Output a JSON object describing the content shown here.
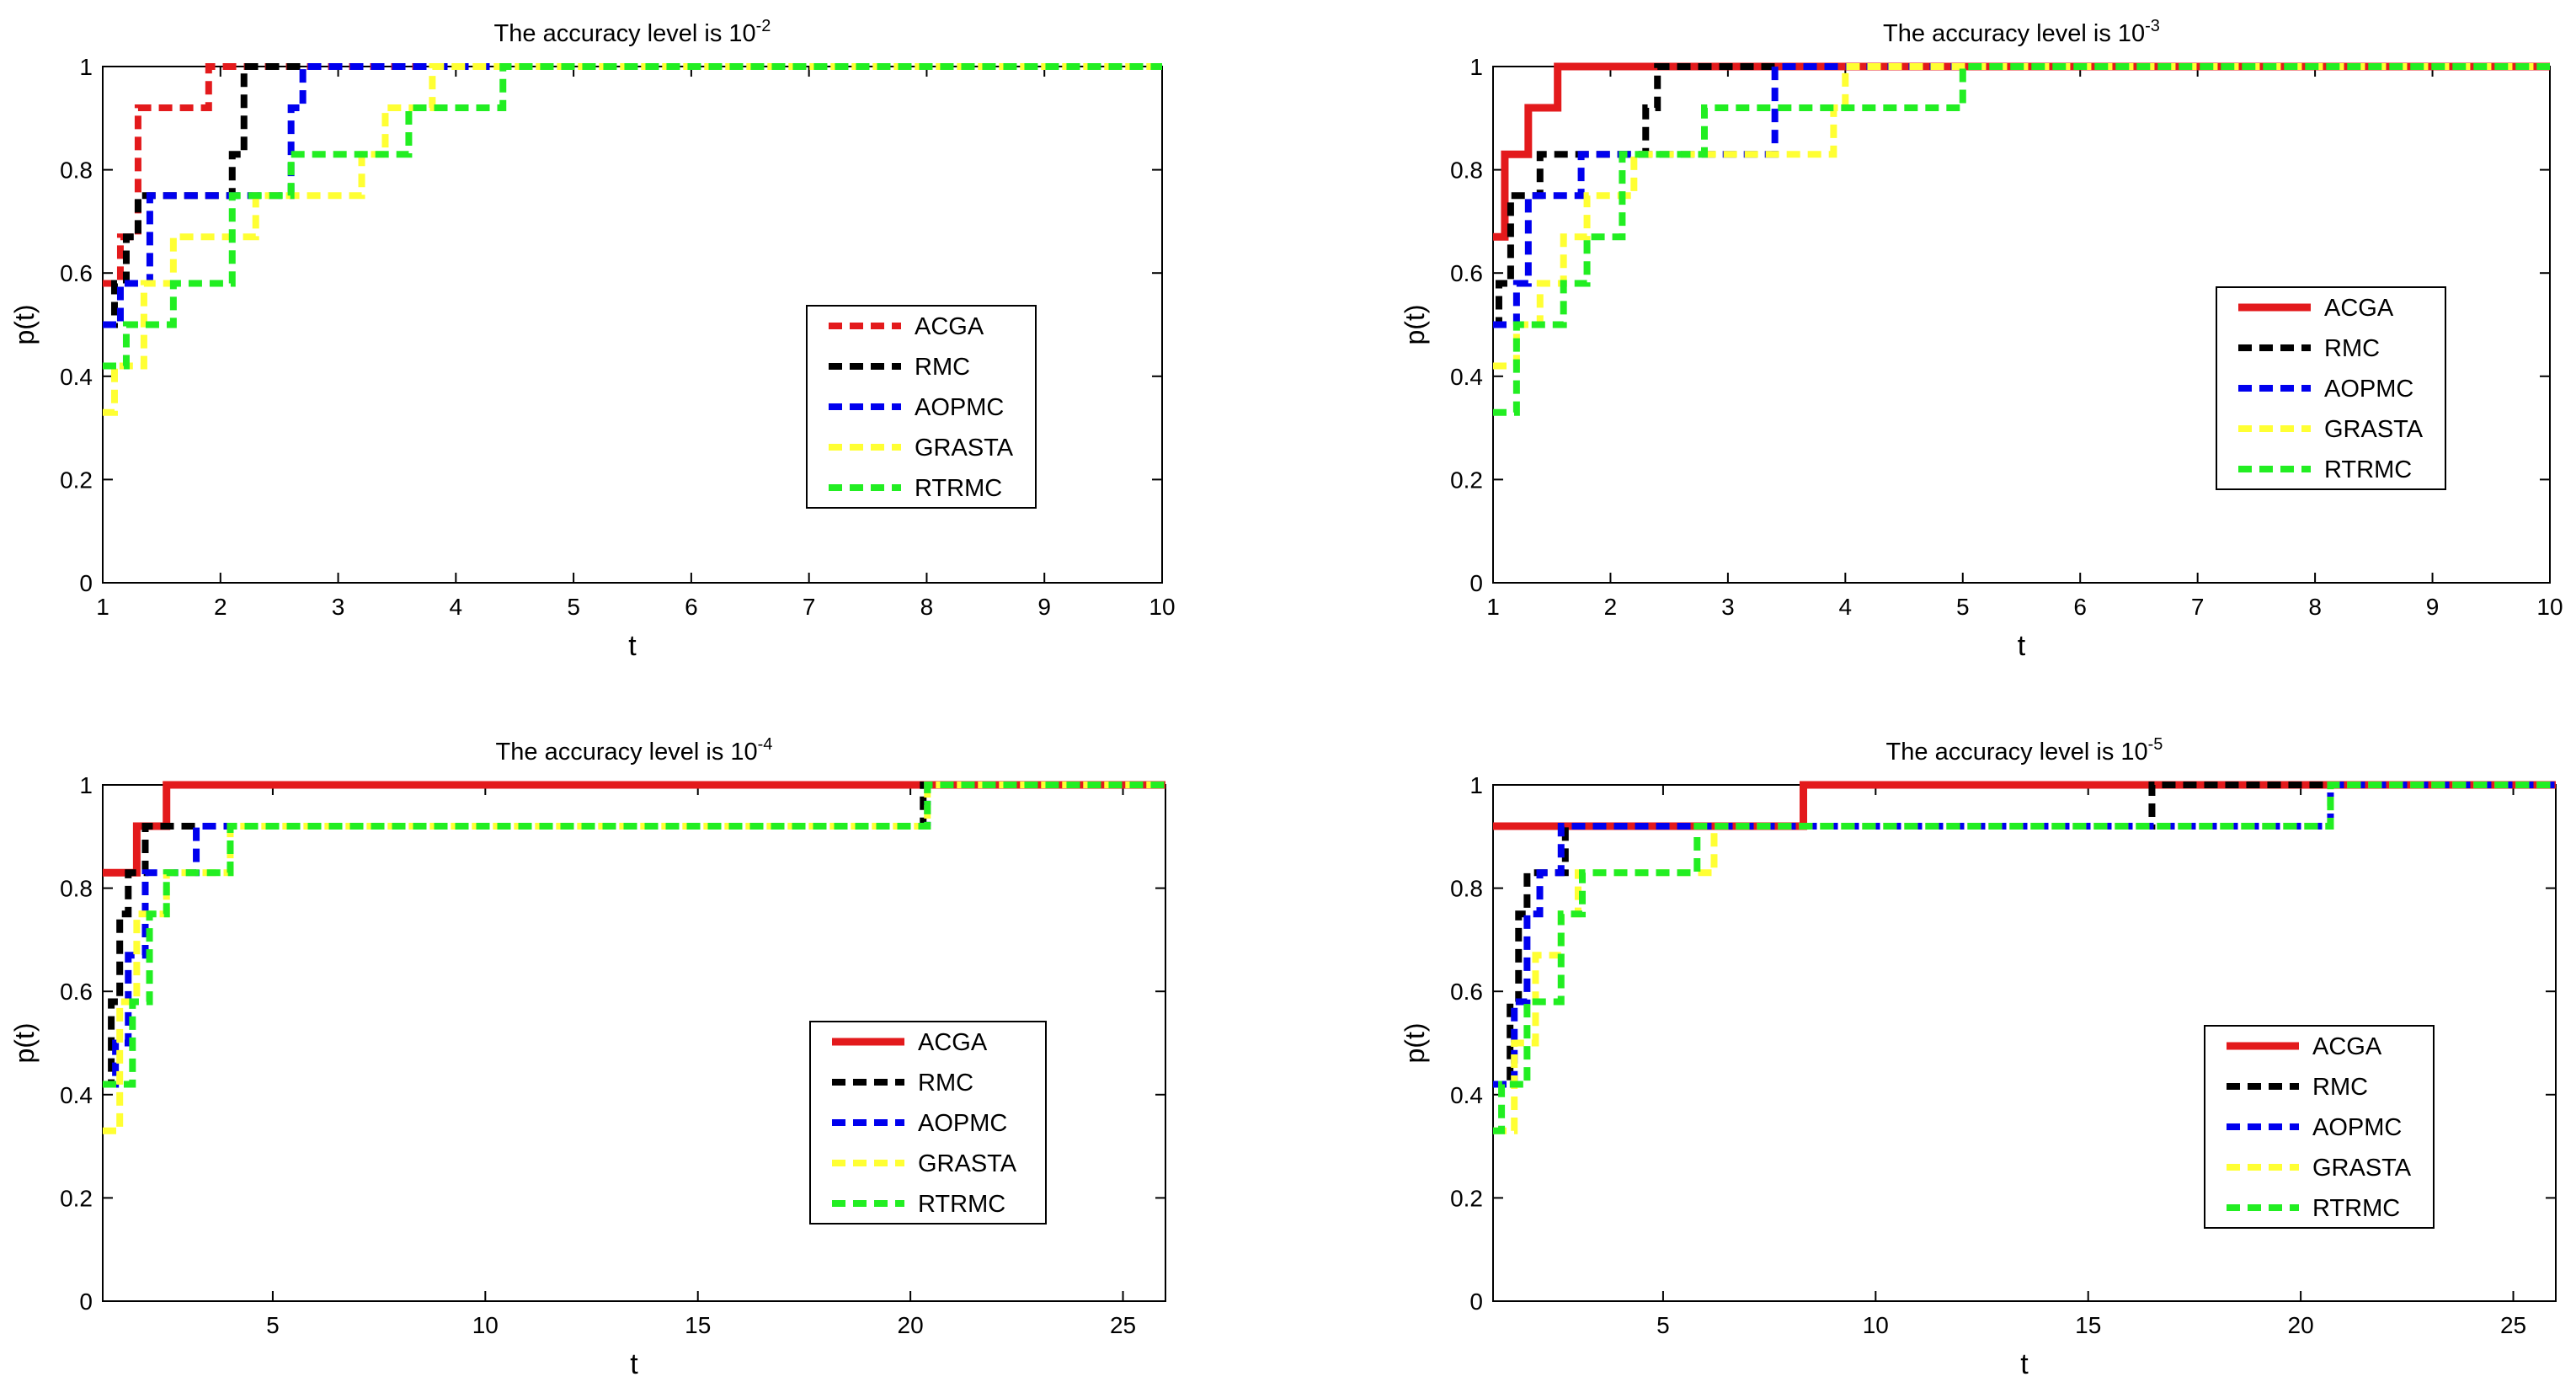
{
  "chart_data": [
    {
      "type": "line",
      "title_prefix": "The accuracy level is 10",
      "title_exp": "-2",
      "xlabel": "t",
      "ylabel": "p(t)",
      "xlim": [
        1,
        10
      ],
      "ylim": [
        0,
        1
      ],
      "xticks": [
        1,
        2,
        3,
        4,
        5,
        6,
        7,
        8,
        9,
        10
      ],
      "yticks": [
        0,
        0.2,
        0.4,
        0.6,
        0.8,
        1
      ],
      "legend_position": "right-center",
      "series": [
        {
          "name": "ACGA",
          "color": "#e31a1c",
          "style": "dashed",
          "x": [
            1,
            1.15,
            1.3,
            1.85,
            1.9,
            10
          ],
          "y": [
            0.58,
            0.67,
            0.92,
            0.92,
            1.0,
            1.0
          ]
        },
        {
          "name": "RMC",
          "color": "#000000",
          "style": "dashed",
          "x": [
            1,
            1.1,
            1.2,
            1.3,
            2.0,
            2.1,
            2.2,
            10
          ],
          "y": [
            0.5,
            0.58,
            0.67,
            0.75,
            0.75,
            0.83,
            1.0,
            1.0
          ]
        },
        {
          "name": "AOPMC",
          "color": "#0000ee",
          "style": "dashed",
          "x": [
            1,
            1.15,
            1.3,
            1.4,
            2.5,
            2.6,
            2.7,
            3.8,
            10
          ],
          "y": [
            0.5,
            0.58,
            0.58,
            0.75,
            0.75,
            0.92,
            1.0,
            1.0,
            1.0
          ]
        },
        {
          "name": "GRASTA",
          "color": "#ffff33",
          "style": "dashed",
          "x": [
            1,
            1.1,
            1.35,
            1.6,
            2.1,
            2.3,
            3.2,
            3.4,
            3.8,
            4.4,
            10
          ],
          "y": [
            0.33,
            0.42,
            0.58,
            0.67,
            0.67,
            0.75,
            0.83,
            0.92,
            1.0,
            1.0,
            1.0
          ]
        },
        {
          "name": "RTRMC",
          "color": "#22ee22",
          "style": "dashed",
          "x": [
            1,
            1.2,
            1.6,
            2.1,
            2.6,
            3.6,
            4.4,
            10
          ],
          "y": [
            0.42,
            0.5,
            0.58,
            0.75,
            0.83,
            0.92,
            1.0,
            1.0
          ]
        }
      ]
    },
    {
      "type": "line",
      "title_prefix": "The accuracy level is 10",
      "title_exp": "-3",
      "xlabel": "t",
      "ylabel": "p(t)",
      "xlim": [
        1,
        10
      ],
      "ylim": [
        0,
        1
      ],
      "xticks": [
        1,
        2,
        3,
        4,
        5,
        6,
        7,
        8,
        9,
        10
      ],
      "yticks": [
        0,
        0.2,
        0.4,
        0.6,
        0.8,
        1
      ],
      "legend_position": "right-center",
      "series": [
        {
          "name": "ACGA",
          "color": "#e31a1c",
          "style": "solid",
          "x": [
            1,
            1.1,
            1.3,
            1.55,
            10
          ],
          "y": [
            0.67,
            0.83,
            0.92,
            1.0,
            1.0
          ]
        },
        {
          "name": "RMC",
          "color": "#000000",
          "style": "dashed",
          "x": [
            1,
            1.05,
            1.15,
            1.4,
            2.1,
            2.3,
            2.4,
            10
          ],
          "y": [
            0.5,
            0.58,
            0.75,
            0.83,
            0.83,
            0.92,
            1.0,
            1.0
          ]
        },
        {
          "name": "AOPMC",
          "color": "#0000ee",
          "style": "dashed",
          "x": [
            1,
            1.2,
            1.3,
            1.55,
            1.75,
            2.2,
            3.4,
            3.9,
            10
          ],
          "y": [
            0.5,
            0.58,
            0.75,
            0.75,
            0.83,
            0.83,
            1.0,
            1.0,
            1.0
          ]
        },
        {
          "name": "GRASTA",
          "color": "#ffff33",
          "style": "dashed",
          "x": [
            1,
            1.2,
            1.4,
            1.6,
            1.8,
            2.2,
            2.8,
            3.9,
            4.0,
            10
          ],
          "y": [
            0.42,
            0.5,
            0.58,
            0.67,
            0.75,
            0.83,
            0.83,
            0.92,
            1.0,
            1.0
          ]
        },
        {
          "name": "RTRMC",
          "color": "#22ee22",
          "style": "dashed",
          "x": [
            1,
            1.2,
            1.6,
            1.8,
            2.1,
            2.8,
            4.9,
            5.0,
            10
          ],
          "y": [
            0.33,
            0.5,
            0.58,
            0.67,
            0.83,
            0.92,
            0.92,
            1.0,
            1.0
          ]
        }
      ]
    },
    {
      "type": "line",
      "title_prefix": "The accuracy level is 10",
      "title_exp": "-4",
      "xlabel": "t",
      "ylabel": "p(t)",
      "xlim": [
        1,
        26
      ],
      "ylim": [
        0,
        1
      ],
      "xticks": [
        5,
        10,
        15,
        20,
        25
      ],
      "yticks": [
        0,
        0.2,
        0.4,
        0.6,
        0.8,
        1
      ],
      "legend_position": "right-center",
      "series": [
        {
          "name": "ACGA",
          "color": "#e31a1c",
          "style": "solid",
          "x": [
            1,
            1.3,
            1.8,
            2.5,
            26
          ],
          "y": [
            0.83,
            0.83,
            0.92,
            1.0,
            1.0
          ]
        },
        {
          "name": "RMC",
          "color": "#000000",
          "style": "dashed",
          "x": [
            1,
            1.2,
            1.4,
            1.6,
            2.0,
            16.2,
            20.3,
            26
          ],
          "y": [
            0.42,
            0.58,
            0.75,
            0.83,
            0.92,
            0.92,
            1.0,
            1.0
          ]
        },
        {
          "name": "AOPMC",
          "color": "#0000ee",
          "style": "dashed",
          "x": [
            1,
            1.3,
            1.6,
            2.0,
            3.2,
            20.4,
            26
          ],
          "y": [
            0.42,
            0.5,
            0.67,
            0.83,
            0.92,
            1.0,
            1.0
          ]
        },
        {
          "name": "GRASTA",
          "color": "#ffff33",
          "style": "dashed",
          "x": [
            1,
            1.4,
            1.8,
            2.5,
            4.0,
            20.4,
            26
          ],
          "y": [
            0.33,
            0.58,
            0.75,
            0.83,
            0.92,
            1.0,
            1.0
          ]
        },
        {
          "name": "RTRMC",
          "color": "#22ee22",
          "style": "dashed",
          "x": [
            1,
            1.7,
            2.1,
            2.5,
            4.0,
            20.4,
            26
          ],
          "y": [
            0.42,
            0.58,
            0.75,
            0.83,
            0.92,
            1.0,
            1.0
          ]
        }
      ]
    },
    {
      "type": "line",
      "title_prefix": "The accuracy level is 10",
      "title_exp": "-5",
      "xlabel": "t",
      "ylabel": "p(t)",
      "xlim": [
        1,
        26
      ],
      "ylim": [
        0,
        1
      ],
      "xticks": [
        5,
        10,
        15,
        20,
        25
      ],
      "yticks": [
        0,
        0.2,
        0.4,
        0.6,
        0.8,
        1
      ],
      "legend_position": "right-center",
      "series": [
        {
          "name": "ACGA",
          "color": "#e31a1c",
          "style": "solid",
          "x": [
            1,
            8.3,
            26
          ],
          "y": [
            0.92,
            1.0,
            1.0
          ]
        },
        {
          "name": "RMC",
          "color": "#000000",
          "style": "dashed",
          "x": [
            1,
            1.4,
            1.6,
            1.8,
            2.7,
            16.5,
            26
          ],
          "y": [
            0.42,
            0.58,
            0.75,
            0.83,
            0.92,
            1.0,
            1.0
          ]
        },
        {
          "name": "AOPMC",
          "color": "#0000ee",
          "style": "dashed",
          "x": [
            1,
            1.5,
            1.8,
            2.1,
            2.6,
            20.7,
            26
          ],
          "y": [
            0.42,
            0.58,
            0.75,
            0.83,
            0.92,
            1.0,
            1.0
          ]
        },
        {
          "name": "GRASTA",
          "color": "#ffff33",
          "style": "dashed",
          "x": [
            1,
            1.5,
            2.0,
            2.6,
            3.0,
            6.2,
            20.7,
            26
          ],
          "y": [
            0.33,
            0.5,
            0.67,
            0.75,
            0.83,
            0.92,
            1.0,
            1.0
          ]
        },
        {
          "name": "RTRMC",
          "color": "#22ee22",
          "style": "dashed",
          "x": [
            1,
            1.2,
            1.8,
            2.6,
            3.1,
            5.8,
            20.7,
            26
          ],
          "y": [
            0.33,
            0.42,
            0.58,
            0.75,
            0.83,
            0.92,
            1.0,
            1.0
          ]
        }
      ]
    }
  ]
}
